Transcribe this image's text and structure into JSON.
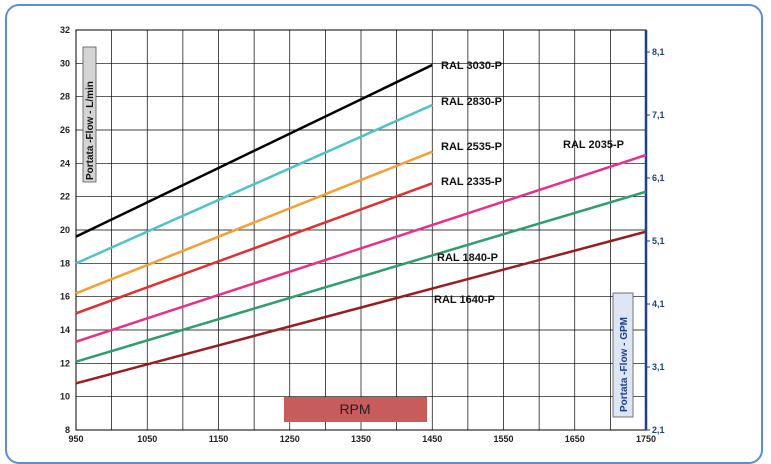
{
  "chart_data": {
    "type": "line",
    "xlabel": "RPM",
    "ylabel": "Portata -Flow -  L/min",
    "y2label": "Portata -Flow -  GPM",
    "xlim": [
      950,
      1750
    ],
    "ylim": [
      8,
      32
    ],
    "x_ticks": [
      "950",
      "1050",
      "1150",
      "1250",
      "1350",
      "1450",
      "1550",
      "1650",
      "1750"
    ],
    "y_ticks": [
      "8",
      "10",
      "12",
      "14",
      "16",
      "18",
      "20",
      "22",
      "24",
      "26",
      "28",
      "30",
      "32"
    ],
    "y2_ticks": [
      {
        "label": "2,1",
        "value": 8
      },
      {
        "label": "3,1",
        "value": 11.78
      },
      {
        "label": "4,1",
        "value": 15.56
      },
      {
        "label": "5,1",
        "value": 19.34
      },
      {
        "label": "6,1",
        "value": 23.12
      },
      {
        "label": "7,1",
        "value": 26.9
      },
      {
        "label": "8,1",
        "value": 30.68
      }
    ],
    "grid": true,
    "series": [
      {
        "name": "RAL 3030-P",
        "color": "#000000",
        "x": [
          950,
          1450
        ],
        "y": [
          19.6,
          29.9
        ]
      },
      {
        "name": "RAL 2830-P",
        "color": "#4fc3c8",
        "x": [
          950,
          1450
        ],
        "y": [
          18.0,
          27.5
        ]
      },
      {
        "name": "RAL 2535-P",
        "color": "#f5a033",
        "x": [
          950,
          1450
        ],
        "y": [
          16.2,
          24.7
        ]
      },
      {
        "name": "RAL 2335-P",
        "color": "#e03030",
        "x": [
          950,
          1450
        ],
        "y": [
          15.0,
          22.8
        ]
      },
      {
        "name": "RAL 2035-P",
        "color": "#e8308a",
        "x": [
          950,
          1750
        ],
        "y": [
          13.3,
          24.5
        ]
      },
      {
        "name": "RAL 1840-P",
        "color": "#2e9e6a",
        "x": [
          950,
          1750
        ],
        "y": [
          12.1,
          22.3
        ]
      },
      {
        "name": "RAL 1640-P",
        "color": "#9b1c1c",
        "x": [
          950,
          1750
        ],
        "y": [
          10.8,
          19.9
        ]
      }
    ]
  }
}
